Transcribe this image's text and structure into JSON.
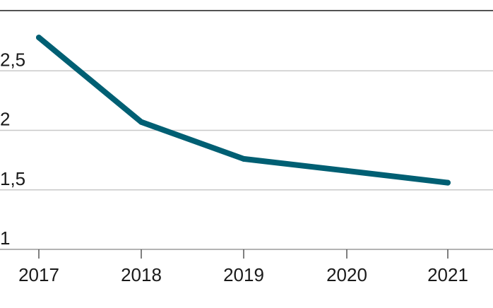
{
  "chart_data": {
    "type": "line",
    "x": [
      "2017",
      "2018",
      "2019",
      "2020",
      "2021"
    ],
    "series": [
      {
        "values": [
          2.78,
          2.07,
          1.76,
          1.66,
          1.56
        ],
        "color": "#005f73"
      }
    ],
    "ylim": [
      1,
      2.9
    ],
    "yticks": [
      {
        "value": 1,
        "label": "1"
      },
      {
        "value": 1.5,
        "label": "1,5"
      },
      {
        "value": 2,
        "label": "2"
      },
      {
        "value": 2.5,
        "label": "2,5"
      }
    ],
    "grid": true,
    "title": "",
    "xlabel": "",
    "ylabel": ""
  }
}
